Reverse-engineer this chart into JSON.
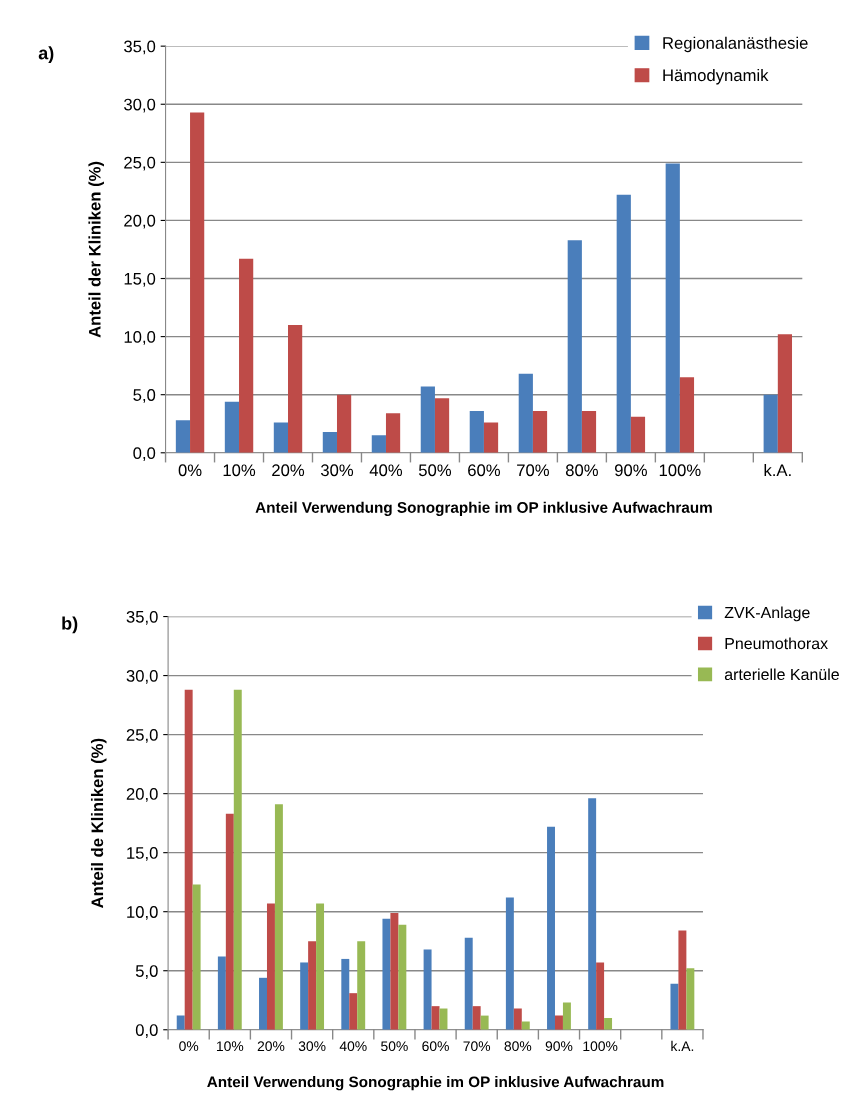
{
  "chart_data": [
    {
      "type": "bar",
      "annotations": [
        "a)"
      ],
      "xlabel": "Anteil Verwendung Sonographie im OP inklusive Aufwachraum",
      "ylabel": "Anteil der Kliniken (%)",
      "categories": [
        "0%",
        "10%",
        "20%",
        "30%",
        "40%",
        "50%",
        "60%",
        "70%",
        "80%",
        "90%",
        "100%",
        null,
        "k.A."
      ],
      "series": [
        {
          "name": "Regionalanästhesie",
          "color": "#4a7ebb",
          "values": [
            2.8,
            4.4,
            2.6,
            1.8,
            1.5,
            5.7,
            3.6,
            6.8,
            18.3,
            22.2,
            24.9,
            null,
            5.0
          ]
        },
        {
          "name": "Hämodynamik",
          "color": "#be4b48",
          "values": [
            29.3,
            16.7,
            11.0,
            5.0,
            3.4,
            4.7,
            2.6,
            3.6,
            3.6,
            3.1,
            6.5,
            null,
            10.2
          ]
        }
      ],
      "ylim": [
        0,
        35
      ],
      "yticks": [
        {
          "value": 0,
          "label": "0,0"
        },
        {
          "value": 5,
          "label": "5,0"
        },
        {
          "value": 10,
          "label": "10,0"
        },
        {
          "value": 15,
          "label": "15,0"
        },
        {
          "value": 20,
          "label": "20,0"
        },
        {
          "value": 25,
          "label": "25,0"
        },
        {
          "value": 30,
          "label": "30,0"
        },
        {
          "value": 35,
          "label": "35,0"
        }
      ],
      "grid": "y",
      "legend": "top right"
    },
    {
      "type": "bar",
      "annotations": [
        "b)"
      ],
      "xlabel": "Anteil Verwendung Sonographie im OP inklusive Aufwachraum",
      "ylabel": "Anteil de Kliniken (%)",
      "categories": [
        "0%",
        "10%",
        "20%",
        "30%",
        "40%",
        "50%",
        "60%",
        "70%",
        "80%",
        "90%",
        "100%",
        null,
        "k.A."
      ],
      "series": [
        {
          "name": "ZVK-Anlage",
          "color": "#4a7ebb",
          "values": [
            1.2,
            6.2,
            4.4,
            5.7,
            6.0,
            9.4,
            6.8,
            7.8,
            11.2,
            17.2,
            19.6,
            null,
            3.9
          ]
        },
        {
          "name": "Pneumothorax",
          "color": "#be4b48",
          "values": [
            28.8,
            18.3,
            10.7,
            7.5,
            3.1,
            9.9,
            2.0,
            2.0,
            1.8,
            1.2,
            5.7,
            null,
            8.4
          ]
        },
        {
          "name": "arterielle Kanüle",
          "color": "#98b954",
          "values": [
            12.3,
            28.8,
            19.1,
            10.7,
            7.5,
            8.9,
            1.8,
            1.2,
            0.7,
            2.3,
            1.0,
            null,
            5.2
          ]
        }
      ],
      "ylim": [
        0,
        35
      ],
      "yticks": [
        {
          "value": 0,
          "label": "0,0"
        },
        {
          "value": 5,
          "label": "5,0"
        },
        {
          "value": 10,
          "label": "10,0"
        },
        {
          "value": 15,
          "label": "15,0"
        },
        {
          "value": 20,
          "label": "20,0"
        },
        {
          "value": 25,
          "label": "25,0"
        },
        {
          "value": 30,
          "label": "30,0"
        },
        {
          "value": 35,
          "label": "35,0"
        }
      ],
      "grid": "y",
      "legend": "right"
    }
  ]
}
